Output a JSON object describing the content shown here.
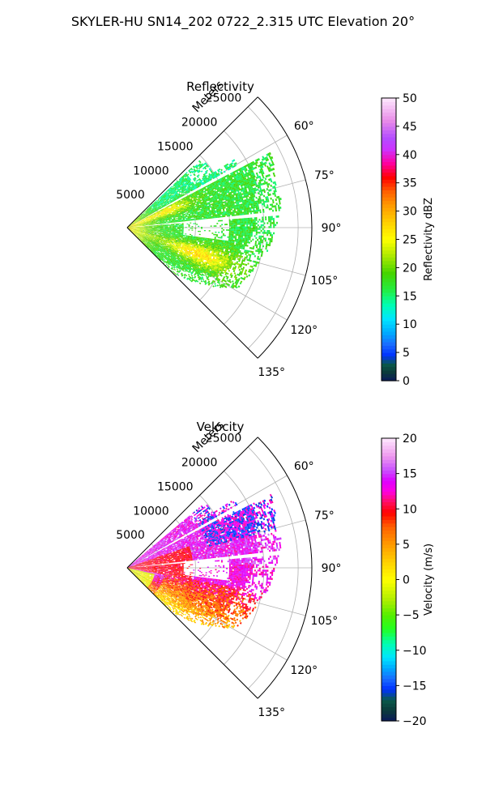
{
  "figure_title": "SKYLER-HU  SN14_202  0722_2.315 UTC Elevation 20°",
  "colors": {
    "grid": "#b0b0b0",
    "axis": "#000000",
    "background": "#ffffff"
  },
  "chart_data": [
    {
      "type": "heatmap",
      "projection": "polar-sector",
      "title": "Reflectivity",
      "radial_label": "Meters",
      "radial_ticks": [
        "5000",
        "10000",
        "15000",
        "20000",
        "25000"
      ],
      "radial_tick_values": [
        5000,
        10000,
        15000,
        20000,
        25000
      ],
      "rlim": [
        0,
        27000
      ],
      "angular_ticks": [
        "60°",
        "75°",
        "90°",
        "105°",
        "120°",
        "135°"
      ],
      "angular_tick_values": [
        60,
        75,
        90,
        105,
        120,
        135
      ],
      "theta_range": [
        45,
        135
      ],
      "grid": true,
      "colorbar": {
        "label": "Reflectivity dBZ",
        "ticks": [
          "0",
          "5",
          "10",
          "15",
          "20",
          "25",
          "30",
          "35",
          "40",
          "45",
          "50"
        ],
        "range": [
          0,
          50
        ],
        "stops": [
          {
            "v": 0,
            "c": "#0b1a5c"
          },
          {
            "v": 1.5,
            "c": "#0b3a3a"
          },
          {
            "v": 3,
            "c": "#0a5a4a"
          },
          {
            "v": 4.5,
            "c": "#0030ff"
          },
          {
            "v": 6.5,
            "c": "#1a6dff"
          },
          {
            "v": 8.5,
            "c": "#00aaff"
          },
          {
            "v": 11,
            "c": "#00e5ff"
          },
          {
            "v": 13.5,
            "c": "#00ffb0"
          },
          {
            "v": 16,
            "c": "#22ee44"
          },
          {
            "v": 19,
            "c": "#44d400"
          },
          {
            "v": 22,
            "c": "#a8e800"
          },
          {
            "v": 25,
            "c": "#ffff00"
          },
          {
            "v": 28,
            "c": "#ffd000"
          },
          {
            "v": 31,
            "c": "#ff9b00"
          },
          {
            "v": 33.5,
            "c": "#ff6000"
          },
          {
            "v": 36,
            "c": "#ff0000"
          },
          {
            "v": 38.5,
            "c": "#ff00a0"
          },
          {
            "v": 41,
            "c": "#cc33ff"
          },
          {
            "v": 43,
            "c": "#b34dff"
          },
          {
            "v": 46,
            "c": "#e88be8"
          },
          {
            "v": 50,
            "c": "#fde8fd"
          }
        ]
      }
    },
    {
      "type": "heatmap",
      "projection": "polar-sector",
      "title": "Velocity",
      "radial_label": "Meters",
      "radial_ticks": [
        "5000",
        "10000",
        "15000",
        "20000",
        "25000"
      ],
      "radial_tick_values": [
        5000,
        10000,
        15000,
        20000,
        25000
      ],
      "rlim": [
        0,
        27000
      ],
      "angular_ticks": [
        "60°",
        "75°",
        "90°",
        "105°",
        "120°",
        "135°"
      ],
      "angular_tick_values": [
        60,
        75,
        90,
        105,
        120,
        135
      ],
      "theta_range": [
        45,
        135
      ],
      "grid": true,
      "colorbar": {
        "label": "Velocity (m/s)",
        "ticks": [
          "−20",
          "−15",
          "−10",
          "−5",
          "0",
          "5",
          "10",
          "15",
          "20"
        ],
        "range": [
          -20,
          20
        ],
        "stops": [
          {
            "v": -20,
            "c": "#0b1a5c"
          },
          {
            "v": -18.5,
            "c": "#0b3a3a"
          },
          {
            "v": -17,
            "c": "#0a5a4a"
          },
          {
            "v": -15.5,
            "c": "#0030ff"
          },
          {
            "v": -14,
            "c": "#1a6dff"
          },
          {
            "v": -12.5,
            "c": "#00aaff"
          },
          {
            "v": -11,
            "c": "#00e5ff"
          },
          {
            "v": -9,
            "c": "#00ffb0"
          },
          {
            "v": -7,
            "c": "#22ff22"
          },
          {
            "v": -5,
            "c": "#55ee00"
          },
          {
            "v": -3,
            "c": "#aaee00"
          },
          {
            "v": 0,
            "c": "#ffff00"
          },
          {
            "v": 2.5,
            "c": "#ffd000"
          },
          {
            "v": 5,
            "c": "#ff9b00"
          },
          {
            "v": 7.5,
            "c": "#ff6000"
          },
          {
            "v": 9.5,
            "c": "#ff0000"
          },
          {
            "v": 11,
            "c": "#ff1060"
          },
          {
            "v": 12.5,
            "c": "#ff00e0"
          },
          {
            "v": 14,
            "c": "#dd00ff"
          },
          {
            "v": 15.5,
            "c": "#c850ff"
          },
          {
            "v": 17.5,
            "c": "#ee99ee"
          },
          {
            "v": 20,
            "c": "#fde8fd"
          }
        ]
      }
    }
  ]
}
